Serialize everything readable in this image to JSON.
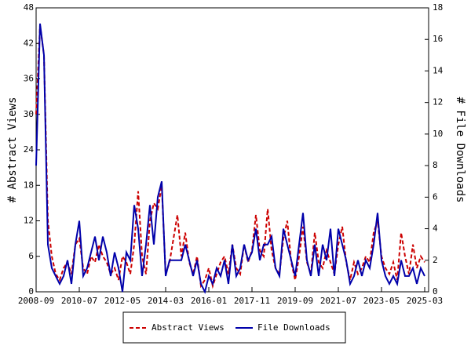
{
  "chart_data": {
    "type": "line",
    "x": [
      "2008-09",
      "2008-11",
      "2009-01",
      "2009-03",
      "2009-05",
      "2009-07",
      "2009-09",
      "2009-11",
      "2010-01",
      "2010-03",
      "2010-05",
      "2010-07",
      "2010-09",
      "2010-11",
      "2011-01",
      "2011-03",
      "2011-05",
      "2011-07",
      "2011-09",
      "2011-11",
      "2012-01",
      "2012-03",
      "2012-05",
      "2012-07",
      "2012-09",
      "2012-11",
      "2013-01",
      "2013-03",
      "2013-05",
      "2013-07",
      "2013-09",
      "2013-11",
      "2014-01",
      "2014-03",
      "2014-05",
      "2014-07",
      "2014-09",
      "2014-11",
      "2015-01",
      "2015-03",
      "2015-05",
      "2015-07",
      "2015-09",
      "2015-11",
      "2016-01",
      "2016-03",
      "2016-05",
      "2016-07",
      "2016-09",
      "2016-11",
      "2017-01",
      "2017-03",
      "2017-05",
      "2017-07",
      "2017-09",
      "2017-11",
      "2018-01",
      "2018-03",
      "2018-05",
      "2018-07",
      "2018-09",
      "2018-11",
      "2019-01",
      "2019-03",
      "2019-05",
      "2019-07",
      "2019-09",
      "2019-11",
      "2020-01",
      "2020-03",
      "2020-05",
      "2020-07",
      "2020-09",
      "2020-11",
      "2021-01",
      "2021-03",
      "2021-05",
      "2021-07",
      "2021-09",
      "2021-11",
      "2022-01",
      "2022-03",
      "2022-05",
      "2022-07",
      "2022-09",
      "2022-11",
      "2023-01",
      "2023-03",
      "2023-05",
      "2023-07",
      "2023-09",
      "2023-11",
      "2024-01",
      "2024-03",
      "2024-05",
      "2024-07",
      "2024-09",
      "2024-11",
      "2025-01",
      "2025-03"
    ],
    "series": [
      {
        "name": "Abstract Views",
        "color": "#cc0000",
        "axis": "y",
        "values": [
          30,
          45,
          40,
          12,
          6,
          3,
          2,
          4,
          5,
          3,
          8,
          9,
          4,
          3,
          6,
          5,
          8,
          6,
          5,
          3,
          4,
          2,
          6,
          5,
          3,
          8,
          17,
          6,
          3,
          12,
          15,
          14,
          18,
          3,
          5,
          9,
          13,
          6,
          10,
          5,
          3,
          6,
          1,
          2,
          4,
          1,
          3,
          5,
          6,
          3,
          8,
          4,
          3,
          8,
          5,
          7,
          13,
          7,
          6,
          14,
          7,
          4,
          3,
          9,
          12,
          5,
          2,
          6,
          11,
          5,
          3,
          10,
          5,
          4,
          7,
          5,
          3,
          8,
          11,
          5,
          2,
          5,
          3,
          4,
          6,
          5,
          10,
          12,
          6,
          4,
          3,
          5,
          2,
          10,
          6,
          3,
          8,
          4,
          6,
          5
        ]
      },
      {
        "name": "File Downloads",
        "color": "#0000aa",
        "axis": "y2",
        "values": [
          8,
          17,
          15,
          3,
          1.5,
          1,
          0.5,
          1,
          2,
          0.5,
          3,
          4.5,
          1,
          1.5,
          2.5,
          3.5,
          2,
          3.5,
          2.5,
          1,
          2.5,
          1.5,
          0,
          2.5,
          2,
          5.5,
          4,
          1,
          3,
          5.5,
          3,
          6,
          7,
          1,
          2,
          2,
          2,
          2,
          3,
          2,
          1,
          2,
          0.5,
          0,
          1,
          0.5,
          1.5,
          1,
          2,
          0.5,
          3,
          1,
          1.5,
          3,
          2,
          2.5,
          4,
          2,
          3,
          3,
          3.5,
          1.5,
          1,
          4,
          3,
          2,
          1,
          3,
          5,
          2,
          1,
          3,
          1,
          3,
          2,
          4,
          1,
          4,
          3,
          2,
          0.5,
          1,
          2,
          1,
          2,
          1.5,
          3,
          5,
          2,
          1,
          0.5,
          1,
          0.5,
          2,
          1,
          1,
          1.5,
          0.5,
          1.5,
          1
        ]
      }
    ],
    "xlim": [
      "2008-09",
      "2025-05"
    ],
    "xticks": [
      "2008-09",
      "2010-07",
      "2012-05",
      "2014-03",
      "2016-01",
      "2017-11",
      "2019-09",
      "2021-07",
      "2023-05",
      "2025-03"
    ],
    "ylim": [
      0,
      48
    ],
    "yticks": [
      0,
      6,
      12,
      18,
      24,
      30,
      36,
      42,
      48
    ],
    "y2lim": [
      0,
      18
    ],
    "y2ticks": [
      0,
      2,
      4,
      6,
      8,
      10,
      12,
      14,
      16,
      18
    ],
    "ylabel": "# Abstract Views",
    "y2label": "# File Downloads"
  }
}
